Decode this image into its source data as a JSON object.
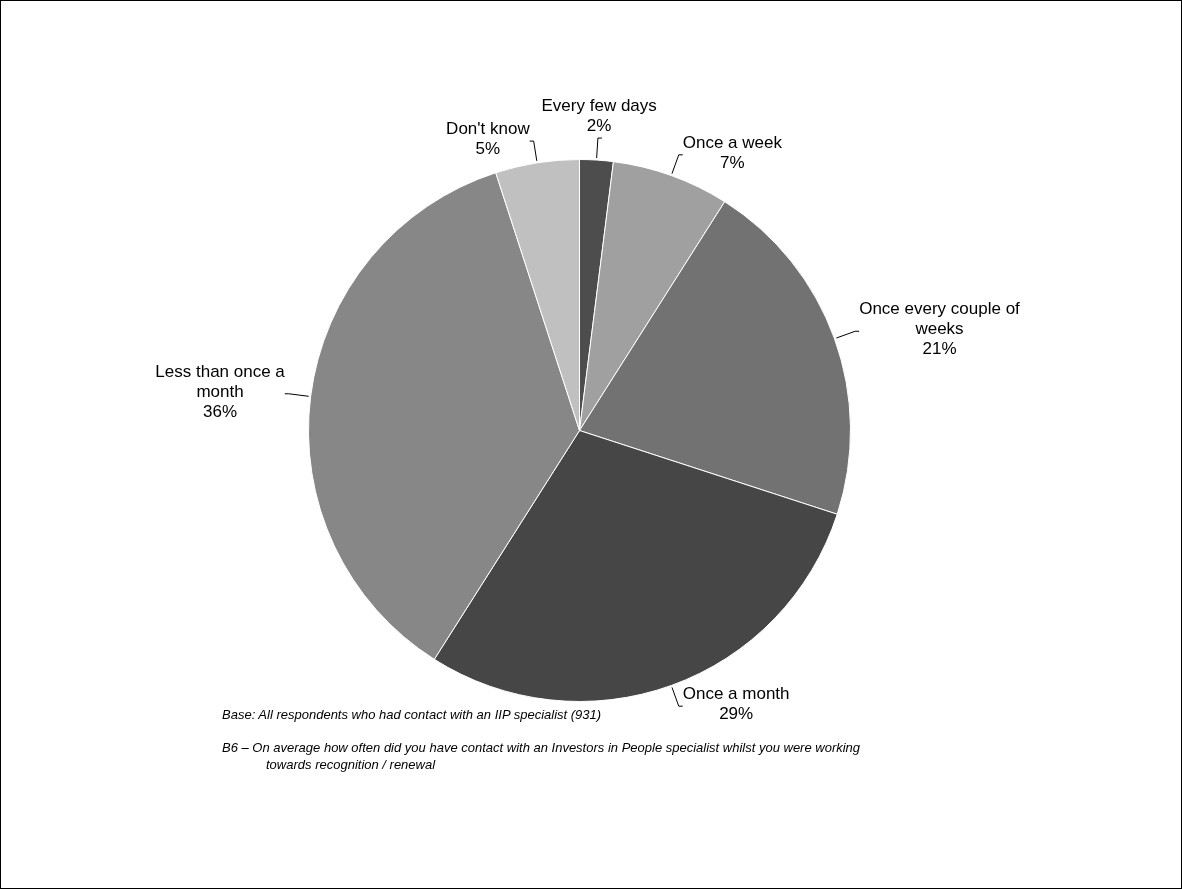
{
  "chart_data": {
    "type": "pie",
    "categories": [
      "Every few days",
      "Once a week",
      "Once every couple of weeks",
      "Once a month",
      "Less than once a month",
      "Don't know"
    ],
    "values": [
      2,
      7,
      21,
      29,
      36,
      5
    ],
    "value_labels": [
      "2%",
      "7%",
      "21%",
      "29%",
      "36%",
      "5%"
    ],
    "colors": [
      "#4d4d4d",
      "#a0a0a0",
      "#727272",
      "#464646",
      "#878787",
      "#c0c0c0"
    ],
    "annotations": [
      "Base: All respondents who had contact with an IIP specialist (931)",
      "B6 – On average how often did you have contact with an Investors in People specialist whilst you were working towards recognition / renewal"
    ],
    "legend": false
  }
}
